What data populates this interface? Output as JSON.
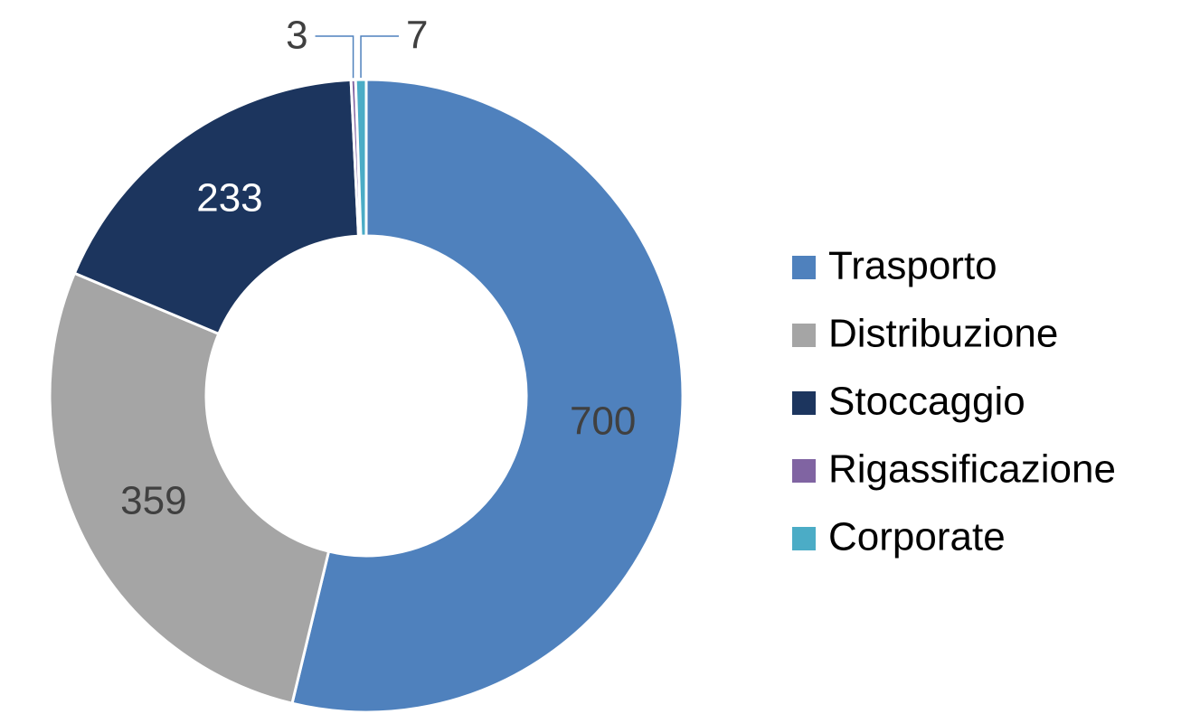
{
  "chart_data": {
    "type": "donut",
    "categories": [
      "Trasporto",
      "Distribuzione",
      "Stoccaggio",
      "Rigassificazione",
      "Corporate"
    ],
    "values": [
      700,
      359,
      233,
      3,
      7
    ],
    "colors": [
      "#4f81bd",
      "#a5a5a5",
      "#1c355e",
      "#8064a2",
      "#4bacc6"
    ],
    "legend": "right"
  }
}
